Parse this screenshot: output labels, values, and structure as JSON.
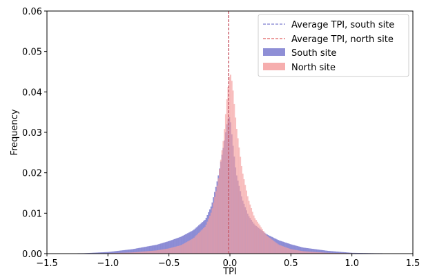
{
  "chart_data": {
    "type": "histogram",
    "title": "",
    "xlabel": "TPI",
    "ylabel": "Frequency",
    "xlim": [
      -1.5,
      1.5
    ],
    "ylim": [
      0,
      0.06
    ],
    "xticks": [
      "-1.5",
      "-1.0",
      "-0.5",
      "0.0",
      "0.5",
      "1.0",
      "1.5"
    ],
    "yticks": [
      "0.00",
      "0.01",
      "0.02",
      "0.03",
      "0.04",
      "0.05",
      "0.06"
    ],
    "grid": false,
    "legend_placement": "top-right",
    "legend": [
      {
        "label": "Average TPI, south site",
        "kind": "dashed-line",
        "color": "#7b7bcf"
      },
      {
        "label": "Average TPI, north site",
        "kind": "dashed-line",
        "color": "#e06060"
      },
      {
        "label": "South site",
        "kind": "patch",
        "color": "#7b7bcf"
      },
      {
        "label": "North site",
        "kind": "patch",
        "color": "#f4a0a0"
      }
    ],
    "mean_lines": [
      {
        "series": "south",
        "x": -0.01,
        "color": "#6a6ac8"
      },
      {
        "series": "north",
        "x": -0.01,
        "color": "#d95555"
      }
    ],
    "series": [
      {
        "name": "South site",
        "color": "#7b7bcf",
        "x": [
          -1.2,
          -1.0,
          -0.8,
          -0.6,
          -0.5,
          -0.4,
          -0.3,
          -0.2,
          -0.15,
          -0.1,
          -0.05,
          -0.02,
          0.0,
          0.02,
          0.05,
          0.1,
          0.15,
          0.2,
          0.3,
          0.4,
          0.5,
          0.6,
          0.8,
          1.0,
          1.2
        ],
        "y": [
          0.0001,
          0.0004,
          0.0011,
          0.0022,
          0.0031,
          0.0042,
          0.0058,
          0.0085,
          0.012,
          0.0185,
          0.027,
          0.033,
          0.034,
          0.028,
          0.02,
          0.0135,
          0.0095,
          0.0072,
          0.0048,
          0.0033,
          0.0023,
          0.0015,
          0.0007,
          0.0002,
          0.0001
        ]
      },
      {
        "name": "North site",
        "color": "#f4a0a0",
        "x": [
          -1.2,
          -1.0,
          -0.8,
          -0.6,
          -0.5,
          -0.4,
          -0.3,
          -0.2,
          -0.15,
          -0.1,
          -0.05,
          -0.02,
          0.0,
          0.02,
          0.05,
          0.1,
          0.15,
          0.2,
          0.3,
          0.4,
          0.5,
          0.6,
          0.8,
          1.0,
          1.2
        ],
        "y": [
          0.0,
          0.0001,
          0.0003,
          0.0008,
          0.0013,
          0.0021,
          0.0038,
          0.0068,
          0.0105,
          0.0175,
          0.029,
          0.04,
          0.045,
          0.042,
          0.032,
          0.0205,
          0.0135,
          0.009,
          0.0045,
          0.0022,
          0.0011,
          0.0006,
          0.0002,
          0.0001,
          0.0
        ]
      }
    ]
  }
}
